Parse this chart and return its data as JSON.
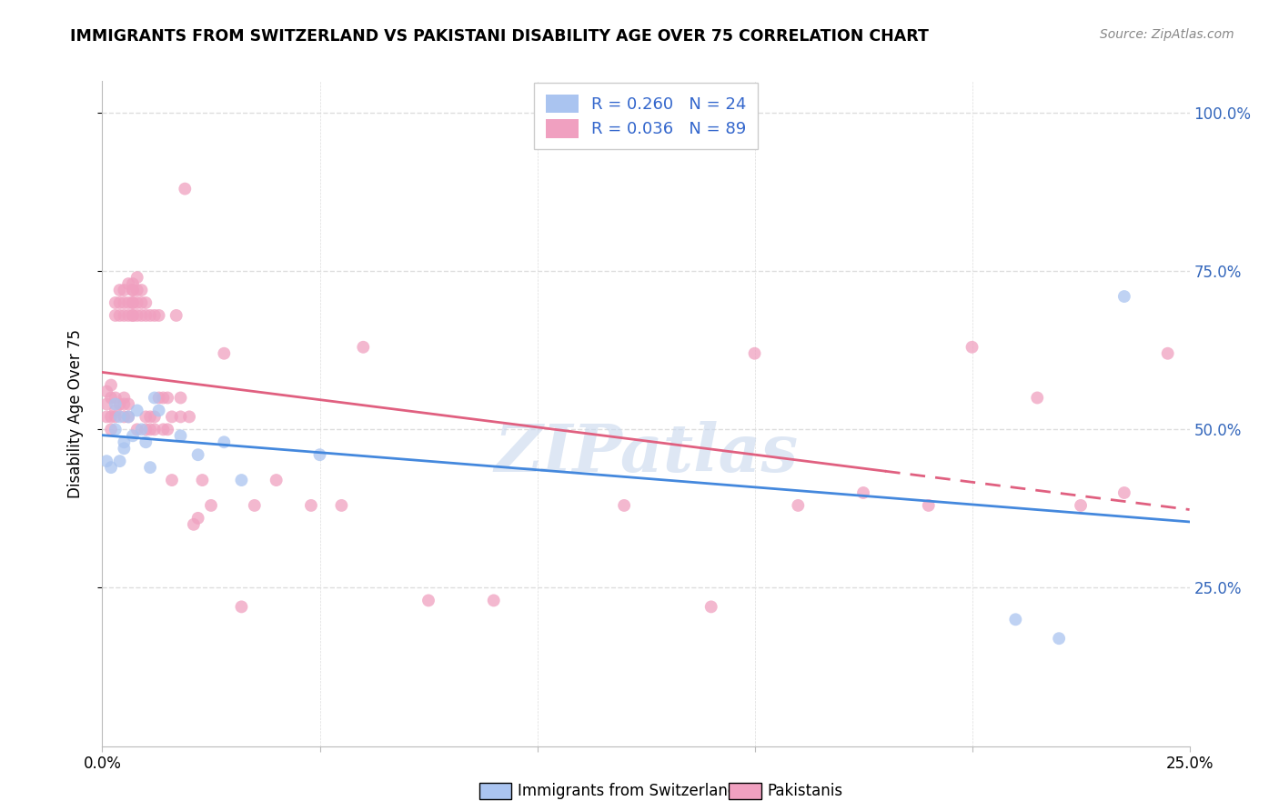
{
  "title": "IMMIGRANTS FROM SWITZERLAND VS PAKISTANI DISABILITY AGE OVER 75 CORRELATION CHART",
  "source": "Source: ZipAtlas.com",
  "ylabel": "Disability Age Over 75",
  "xlim": [
    0.0,
    0.25
  ],
  "ylim": [
    0.0,
    1.05
  ],
  "swiss_color": "#aac4f0",
  "pak_color": "#f0a0c0",
  "swiss_line_color": "#4488dd",
  "pak_line_color": "#e06080",
  "watermark": "ZIPatlas",
  "watermark_color": "#c8d8ee",
  "background_color": "#ffffff",
  "grid_color": "#dddddd",
  "swiss_x": [
    0.001,
    0.002,
    0.003,
    0.003,
    0.004,
    0.004,
    0.005,
    0.005,
    0.006,
    0.007,
    0.008,
    0.009,
    0.01,
    0.011,
    0.012,
    0.013,
    0.018,
    0.022,
    0.028,
    0.032,
    0.05,
    0.21,
    0.22,
    0.235
  ],
  "swiss_y": [
    0.45,
    0.44,
    0.54,
    0.5,
    0.52,
    0.45,
    0.47,
    0.48,
    0.52,
    0.49,
    0.53,
    0.5,
    0.48,
    0.44,
    0.55,
    0.53,
    0.49,
    0.46,
    0.48,
    0.42,
    0.46,
    0.2,
    0.17,
    0.71
  ],
  "pak_x": [
    0.001,
    0.001,
    0.001,
    0.002,
    0.002,
    0.002,
    0.002,
    0.003,
    0.003,
    0.003,
    0.003,
    0.003,
    0.004,
    0.004,
    0.004,
    0.004,
    0.005,
    0.005,
    0.005,
    0.005,
    0.005,
    0.005,
    0.006,
    0.006,
    0.006,
    0.006,
    0.006,
    0.007,
    0.007,
    0.007,
    0.007,
    0.007,
    0.007,
    0.007,
    0.008,
    0.008,
    0.008,
    0.008,
    0.008,
    0.009,
    0.009,
    0.009,
    0.01,
    0.01,
    0.01,
    0.01,
    0.011,
    0.011,
    0.011,
    0.012,
    0.012,
    0.012,
    0.013,
    0.013,
    0.014,
    0.014,
    0.015,
    0.015,
    0.016,
    0.016,
    0.017,
    0.018,
    0.018,
    0.019,
    0.02,
    0.021,
    0.022,
    0.023,
    0.025,
    0.028,
    0.032,
    0.035,
    0.04,
    0.048,
    0.055,
    0.06,
    0.075,
    0.09,
    0.12,
    0.14,
    0.15,
    0.16,
    0.175,
    0.19,
    0.2,
    0.215,
    0.225,
    0.235,
    0.245
  ],
  "pak_y": [
    0.52,
    0.54,
    0.56,
    0.5,
    0.52,
    0.55,
    0.57,
    0.52,
    0.53,
    0.55,
    0.68,
    0.7,
    0.54,
    0.68,
    0.7,
    0.72,
    0.52,
    0.54,
    0.55,
    0.68,
    0.7,
    0.72,
    0.52,
    0.54,
    0.68,
    0.7,
    0.73,
    0.68,
    0.7,
    0.72,
    0.73,
    0.68,
    0.7,
    0.72,
    0.68,
    0.7,
    0.72,
    0.74,
    0.5,
    0.68,
    0.7,
    0.72,
    0.5,
    0.52,
    0.68,
    0.7,
    0.5,
    0.52,
    0.68,
    0.5,
    0.52,
    0.68,
    0.55,
    0.68,
    0.5,
    0.55,
    0.5,
    0.55,
    0.42,
    0.52,
    0.68,
    0.52,
    0.55,
    0.88,
    0.52,
    0.35,
    0.36,
    0.42,
    0.38,
    0.62,
    0.22,
    0.38,
    0.42,
    0.38,
    0.38,
    0.63,
    0.23,
    0.23,
    0.38,
    0.22,
    0.62,
    0.38,
    0.4,
    0.38,
    0.63,
    0.55,
    0.38,
    0.4,
    0.62
  ]
}
